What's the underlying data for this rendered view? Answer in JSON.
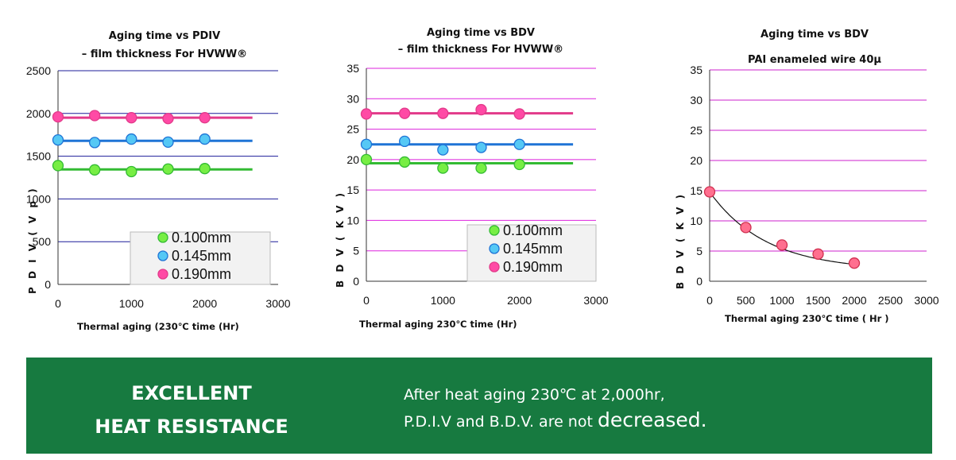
{
  "chart_data": [
    {
      "type": "scatter",
      "title": [
        "Aging time vs PDIV",
        "– film thickness For HVWW®"
      ],
      "xlabel": "Thermal aging (230℃ time (Hr)",
      "ylabel": "P D I V  ( V p )",
      "xlim": [
        0,
        3000
      ],
      "ylim": [
        0,
        2500
      ],
      "xticks": [
        "0",
        "1000",
        "2000",
        "3000"
      ],
      "yticks": [
        "0",
        "500",
        "1000",
        "1500",
        "2000",
        "2500"
      ],
      "x": [
        0,
        500,
        1000,
        1500,
        2000
      ],
      "trend_end": 2650,
      "series": [
        {
          "name": "0.100mm",
          "values": [
            1390,
            1340,
            1320,
            1350,
            1355
          ],
          "trend": 1345,
          "color": "#33bb33",
          "fill": "#77ee44"
        },
        {
          "name": "0.145mm",
          "values": [
            1690,
            1660,
            1700,
            1665,
            1700
          ],
          "trend": 1680,
          "color": "#1f74d6",
          "fill": "#55c8f5"
        },
        {
          "name": "0.190mm",
          "values": [
            1960,
            1975,
            1950,
            1940,
            1950
          ],
          "trend": 1950,
          "color": "#e23a8a",
          "fill": "#ff4aa5"
        }
      ],
      "grid_color": "#1c1c99"
    },
    {
      "type": "scatter",
      "title": [
        "Aging time vs BDV",
        "– film thickness For HVWW®"
      ],
      "xlabel": "Thermal aging 230℃ time (Hr)",
      "ylabel": "B D V  ( K V )",
      "xlim": [
        0,
        3000
      ],
      "ylim": [
        0,
        35
      ],
      "xticks": [
        "0",
        "1000",
        "2000",
        "3000"
      ],
      "yticks": [
        "0",
        "5",
        "10",
        "15",
        "20",
        "25",
        "30",
        "35"
      ],
      "x": [
        0,
        500,
        1000,
        1500,
        2000
      ],
      "trend_end": 2700,
      "series": [
        {
          "name": "0.100mm",
          "values": [
            20.0,
            19.6,
            18.6,
            18.6,
            19.2
          ],
          "trend": 19.4,
          "color": "#33bb33",
          "fill": "#77ee44"
        },
        {
          "name": "0.145mm",
          "values": [
            22.5,
            23.0,
            21.6,
            22.0,
            22.5
          ],
          "trend": 22.5,
          "color": "#1f74d6",
          "fill": "#55c8f5"
        },
        {
          "name": "0.190mm",
          "values": [
            27.5,
            27.6,
            27.6,
            28.2,
            27.5
          ],
          "trend": 27.6,
          "color": "#e23a8a",
          "fill": "#ff4aa5"
        }
      ],
      "grid_color": "#dd22dd"
    },
    {
      "type": "scatter",
      "title": [
        "Aging time vs BDV",
        "PAI enameled wire 40μ"
      ],
      "xlabel": "Thermal aging 230℃ time ( Hr )",
      "ylabel": "B D V  ( K V )",
      "xlim": [
        0,
        3000
      ],
      "ylim": [
        0,
        35
      ],
      "xticks": [
        "0",
        "500",
        "1000",
        "1500",
        "2000",
        "2500",
        "3000"
      ],
      "yticks": [
        "0",
        "5",
        "10",
        "15",
        "20",
        "25",
        "30",
        "35"
      ],
      "x": [
        0,
        500,
        1000,
        1500,
        2000
      ],
      "series": [
        {
          "name": "PAI enameled wire 40μ",
          "values": [
            14.8,
            8.9,
            6.0,
            4.5,
            3.0
          ],
          "color": "#d03050",
          "fill": "#ff6f8f"
        }
      ],
      "trend_curve": true,
      "grid_color": "#cc22cc"
    }
  ],
  "banner": {
    "heading": [
      "EXCELLENT",
      "HEAT RESISTANCE"
    ],
    "line1": "After heat aging 230℃ at 2,000hr,",
    "line2_prefix": "P.D.I.V and B.D.V. are not ",
    "line2_emphasis": "decreased."
  }
}
